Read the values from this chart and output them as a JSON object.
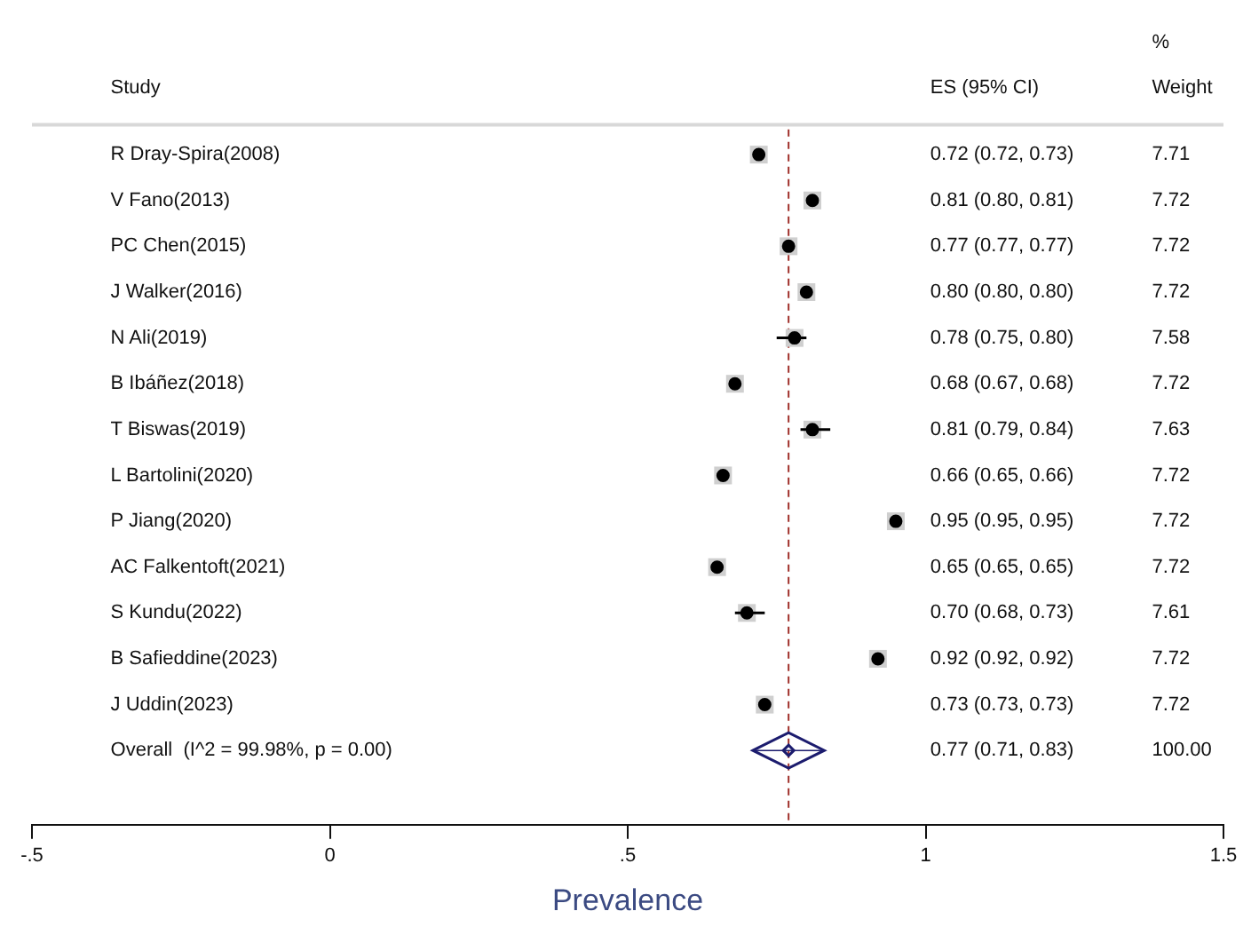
{
  "chart_data": {
    "type": "scatter",
    "orientation": "horizontal",
    "xlabel": "Prevalence",
    "categories": [
      "R Dray-Spira(2008)",
      "V Fano(2013)",
      "PC Chen(2015)",
      "J Walker(2016)",
      "N Ali(2019)",
      "B Ibáñez(2018)",
      "T Biswas(2019)",
      "L Bartolini(2020)",
      "P Jiang(2020)",
      "AC Falkentoft(2021)",
      "S Kundu(2022)",
      "B Safieddine(2023)",
      "J Uddin(2023)",
      "Overall  (I^2 = 99.98%, p = 0.00)"
    ],
    "series": [
      {
        "color": "#000000",
        "marker": "circle",
        "values": [
          0.72,
          0.81,
          0.77,
          0.8,
          0.78,
          0.68,
          0.81,
          0.66,
          0.95,
          0.65,
          0.7,
          0.92,
          0.73,
          null
        ],
        "errors": [
          [
            0.72,
            0.73
          ],
          [
            0.8,
            0.81
          ],
          [
            0.77,
            0.77
          ],
          [
            0.8,
            0.8
          ],
          [
            0.75,
            0.8
          ],
          [
            0.67,
            0.68
          ],
          [
            0.79,
            0.84
          ],
          [
            0.65,
            0.66
          ],
          [
            0.95,
            0.95
          ],
          [
            0.65,
            0.65
          ],
          [
            0.68,
            0.73
          ],
          [
            0.92,
            0.92
          ],
          [
            0.73,
            0.73
          ],
          null
        ]
      },
      {
        "color": "#1c1c6e",
        "marker": "diamond",
        "values": [
          null,
          null,
          null,
          null,
          null,
          null,
          null,
          null,
          null,
          null,
          null,
          null,
          null,
          0.77
        ],
        "errors": [
          null,
          null,
          null,
          null,
          null,
          null,
          null,
          null,
          null,
          null,
          null,
          null,
          null,
          [
            0.71,
            0.83
          ]
        ]
      }
    ],
    "annotations": [
      "Study",
      "ES (95% CI)",
      "%",
      "Weight",
      "0.72 (0.72, 0.73)",
      "7.71",
      "0.81 (0.80, 0.81)",
      "7.72",
      "0.77 (0.77, 0.77)",
      "7.72",
      "0.80 (0.80, 0.80)",
      "7.72",
      "0.78 (0.75, 0.80)",
      "7.58",
      "0.68 (0.67, 0.68)",
      "7.72",
      "0.81 (0.79, 0.84)",
      "7.63",
      "0.66 (0.65, 0.66)",
      "7.72",
      "0.95 (0.95, 0.95)",
      "7.72",
      "0.65 (0.65, 0.65)",
      "7.72",
      "0.70 (0.68, 0.73)",
      "7.61",
      "0.92 (0.92, 0.92)",
      "7.72",
      "0.73 (0.73, 0.73)",
      "7.72",
      "0.77 (0.71, 0.83)",
      "100.00"
    ],
    "xlim": [
      -0.5,
      1.5
    ],
    "xticks": [
      {
        "value": -0.5,
        "label": "-.5"
      },
      0,
      {
        "value": 0.5,
        "label": ".5"
      },
      1,
      1.5
    ],
    "ref_lines": [
      {
        "axis": "x",
        "value": 0.77,
        "color": "#a0302a",
        "line_style": "dashed"
      }
    ],
    "grid": false,
    "legend": false
  }
}
